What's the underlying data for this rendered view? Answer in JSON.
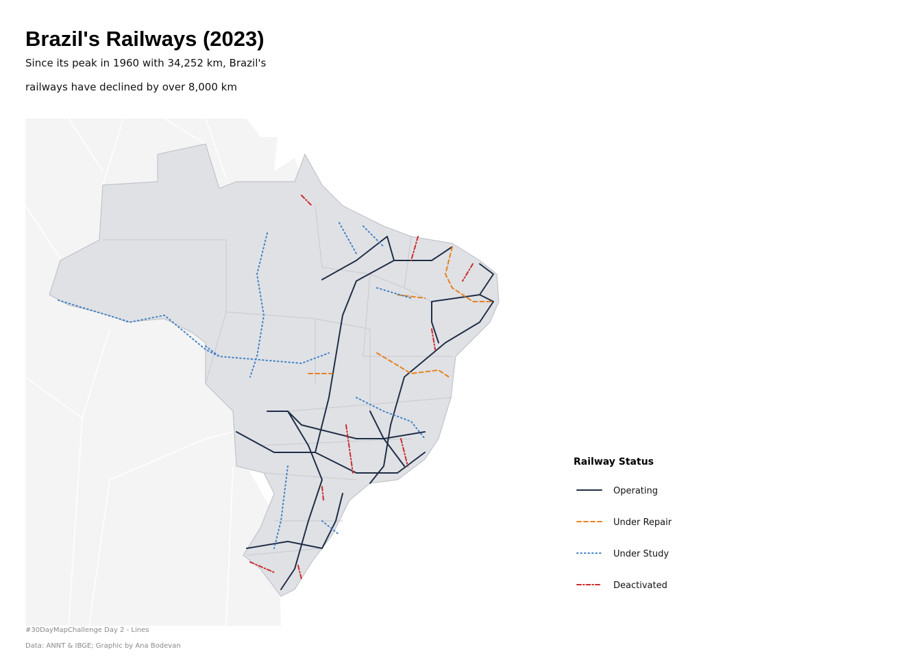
{
  "header": {
    "title": "Brazil's Railways (2023)",
    "subtitle": [
      "Since its peak in 1960 with 34,252 km, Brazil's",
      "railways have declined by over 8,000 km"
    ]
  },
  "legend": {
    "title": "Railway Status",
    "items": [
      {
        "label": "Operating",
        "color": "#1f2d45"
      },
      {
        "label": "Under Repair",
        "color": "#e8811c"
      },
      {
        "label": "Under Study",
        "color": "#3f7fc4"
      },
      {
        "label": "Deactivated",
        "color": "#cc2a2a"
      }
    ]
  },
  "footer": [
    "#30DayMapChallenge Day 2 - Lines",
    "Data: ANNT & IBGE; Graphic by Ana Bodevan"
  ]
}
